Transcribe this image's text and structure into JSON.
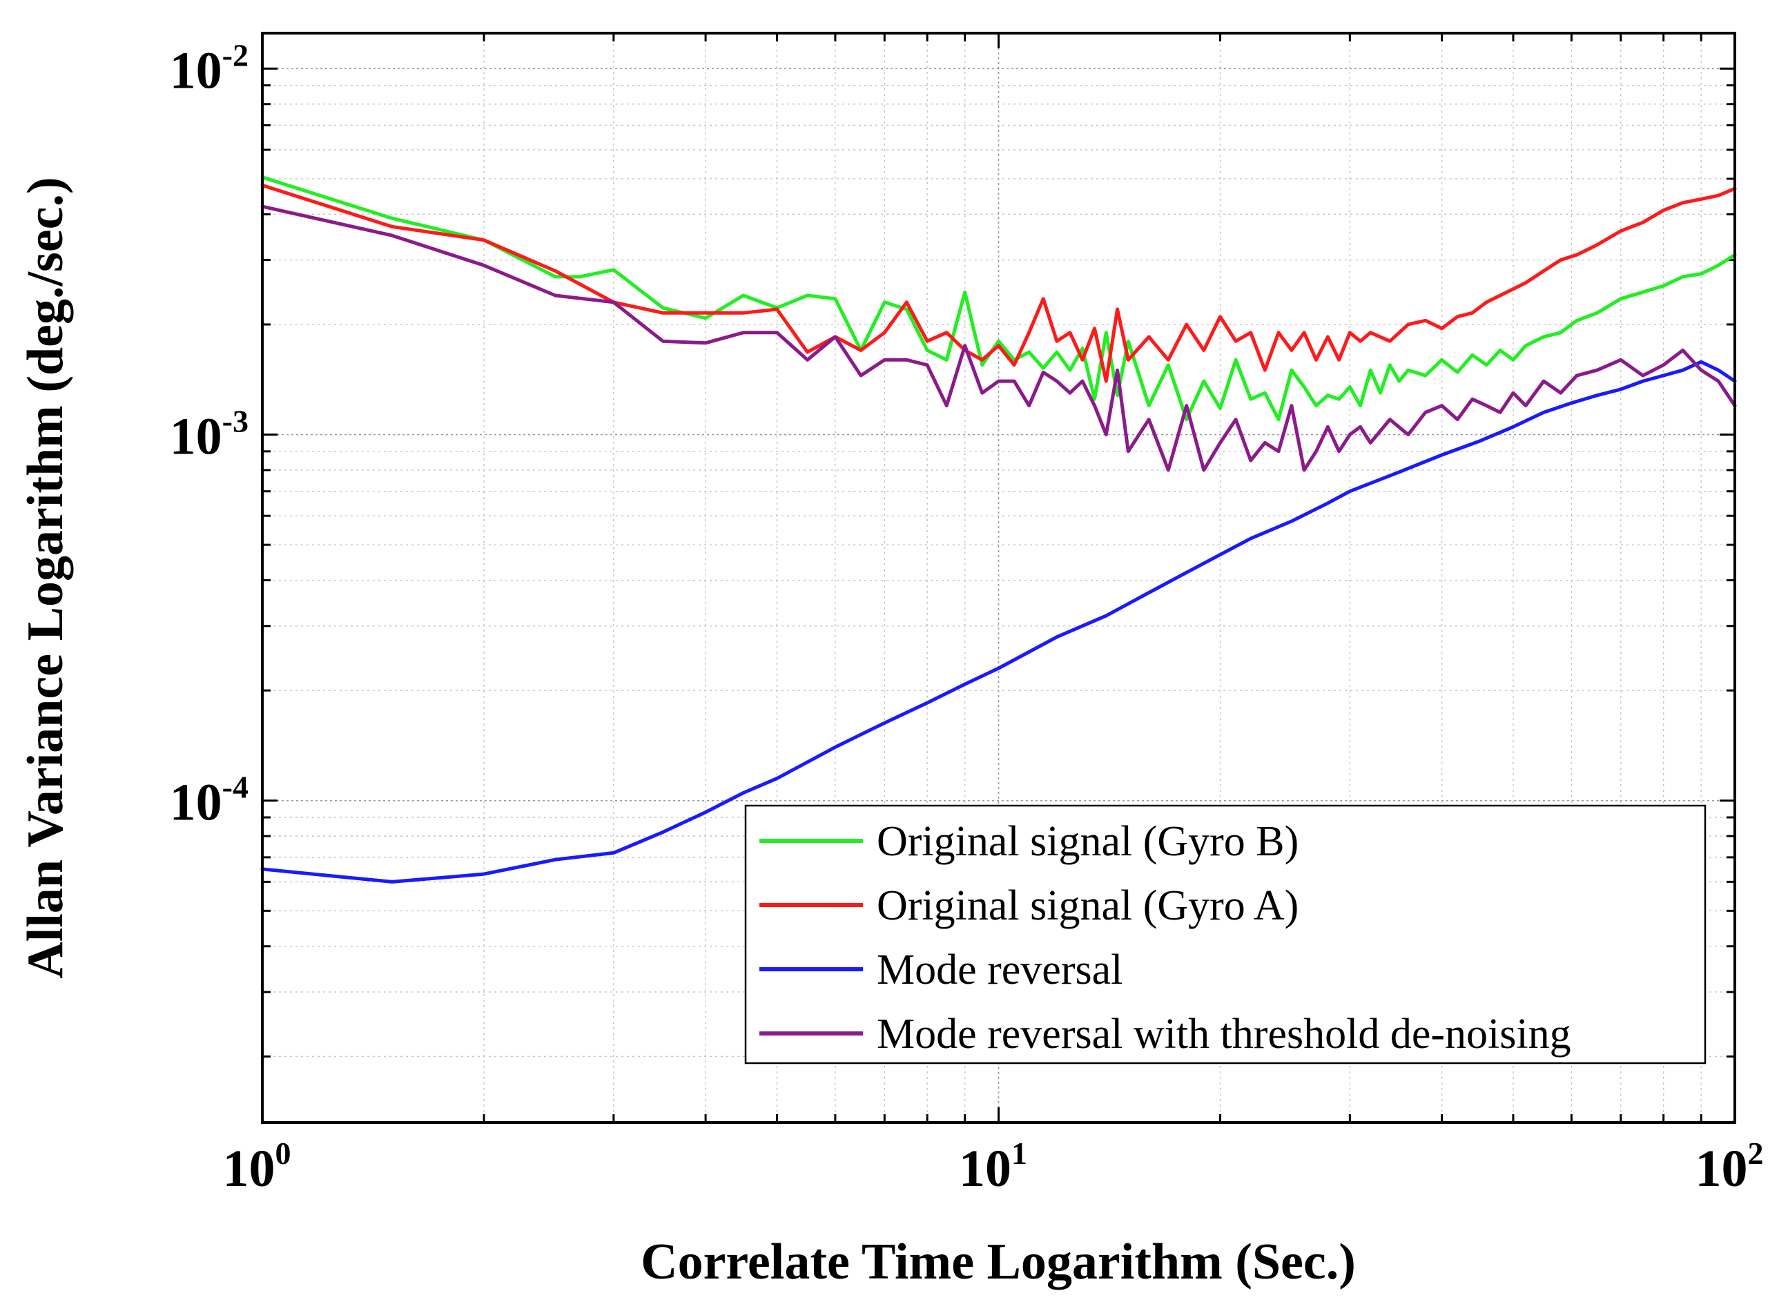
{
  "chart_data": {
    "type": "line",
    "xscale": "log",
    "yscale": "log",
    "xlim": [
      1,
      100
    ],
    "ylim": [
      1.32e-05,
      0.0125
    ],
    "xlabel": "Correlate Time Logarithm (Sec.)",
    "ylabel": "Allan Variance Logarithm (deg./sec.)",
    "x_ticks": [
      {
        "base": "10",
        "exp": "0"
      },
      {
        "base": "10",
        "exp": "1"
      },
      {
        "base": "10",
        "exp": "2"
      }
    ],
    "y_ticks": [
      {
        "base": "10",
        "exp": "-4"
      },
      {
        "base": "10",
        "exp": "-3"
      },
      {
        "base": "10",
        "exp": "-2"
      }
    ],
    "legend_position": "bottom-right",
    "series": [
      {
        "name": "Original signal (Gyro B)",
        "color": "#22ee22",
        "x": [
          1,
          1.5,
          2,
          2.5,
          2.7,
          3,
          3.5,
          4,
          4.5,
          5,
          5.5,
          6,
          6.5,
          7,
          7.5,
          8,
          8.5,
          9,
          9.5,
          10,
          10.5,
          11,
          11.5,
          12,
          12.5,
          13,
          13.5,
          14,
          14.5,
          15,
          16,
          17,
          18,
          19,
          20,
          21,
          22,
          23,
          24,
          25,
          26,
          27,
          28,
          29,
          30,
          31,
          32,
          33,
          34,
          35,
          36,
          38,
          40,
          42,
          44,
          46,
          48,
          50,
          52,
          55,
          58,
          61,
          65,
          70,
          75,
          80,
          85,
          90,
          95,
          100
        ],
        "y": [
          0.00505,
          0.0039,
          0.0034,
          0.0027,
          0.0027,
          0.00282,
          0.00222,
          0.00208,
          0.0024,
          0.00222,
          0.0024,
          0.00235,
          0.0017,
          0.0023,
          0.0022,
          0.0017,
          0.0016,
          0.00245,
          0.00155,
          0.0018,
          0.0016,
          0.00168,
          0.00152,
          0.00168,
          0.0015,
          0.00172,
          0.00125,
          0.0019,
          0.00128,
          0.0018,
          0.0012,
          0.00155,
          0.0011,
          0.0014,
          0.00118,
          0.0016,
          0.00125,
          0.0013,
          0.0011,
          0.0015,
          0.00135,
          0.0012,
          0.00128,
          0.00125,
          0.00135,
          0.0012,
          0.0015,
          0.0013,
          0.00155,
          0.0014,
          0.0015,
          0.00145,
          0.0016,
          0.00148,
          0.00165,
          0.00155,
          0.0017,
          0.0016,
          0.00175,
          0.00185,
          0.0019,
          0.00205,
          0.00215,
          0.00235,
          0.00245,
          0.00255,
          0.0027,
          0.00275,
          0.0029,
          0.0031
        ]
      },
      {
        "name": "Original signal (Gyro A)",
        "color": "#ff1a1a",
        "x": [
          1,
          1.5,
          2,
          2.5,
          3,
          3.5,
          4,
          4.5,
          5,
          5.5,
          6,
          6.5,
          7,
          7.5,
          8,
          8.5,
          9,
          9.5,
          10,
          10.5,
          11,
          11.5,
          12,
          12.5,
          13,
          13.5,
          14,
          14.5,
          15,
          16,
          17,
          18,
          19,
          20,
          21,
          22,
          23,
          24,
          25,
          26,
          27,
          28,
          29,
          30,
          31,
          32,
          34,
          36,
          38,
          40,
          42,
          44,
          46,
          48,
          50,
          52,
          55,
          58,
          61,
          65,
          70,
          75,
          80,
          85,
          90,
          95,
          100
        ],
        "y": [
          0.0048,
          0.0037,
          0.0034,
          0.0028,
          0.0023,
          0.00215,
          0.00215,
          0.00215,
          0.0022,
          0.00168,
          0.00185,
          0.0017,
          0.0019,
          0.0023,
          0.0018,
          0.0019,
          0.0017,
          0.0016,
          0.00175,
          0.00155,
          0.0019,
          0.00235,
          0.0018,
          0.0019,
          0.0016,
          0.00195,
          0.0014,
          0.0022,
          0.0016,
          0.00185,
          0.0016,
          0.002,
          0.0017,
          0.0021,
          0.0018,
          0.0019,
          0.0015,
          0.0019,
          0.0017,
          0.0019,
          0.0016,
          0.00185,
          0.0016,
          0.0019,
          0.0018,
          0.0019,
          0.0018,
          0.002,
          0.00205,
          0.00195,
          0.0021,
          0.00215,
          0.0023,
          0.0024,
          0.0025,
          0.0026,
          0.0028,
          0.003,
          0.0031,
          0.0033,
          0.0036,
          0.0038,
          0.0041,
          0.0043,
          0.0044,
          0.0045,
          0.0047
        ]
      },
      {
        "name": "Mode reversal",
        "color": "#1a1aff",
        "x": [
          1,
          1.5,
          2,
          2.5,
          3,
          3.5,
          4,
          4.5,
          5,
          6,
          7,
          8,
          9,
          10,
          12,
          14,
          16,
          18,
          20,
          22,
          25,
          28,
          30,
          35,
          40,
          45,
          50,
          55,
          60,
          65,
          70,
          75,
          80,
          85,
          90,
          95,
          100
        ],
        "y": [
          6.5e-05,
          6e-05,
          6.3e-05,
          6.9e-05,
          7.2e-05,
          8.2e-05,
          9.3e-05,
          0.000105,
          0.000115,
          0.00014,
          0.000163,
          0.000185,
          0.000208,
          0.00023,
          0.00028,
          0.00032,
          0.00037,
          0.00042,
          0.00047,
          0.00052,
          0.00058,
          0.00065,
          0.0007,
          0.00079,
          0.00088,
          0.00096,
          0.00105,
          0.00115,
          0.00122,
          0.00128,
          0.00133,
          0.0014,
          0.00145,
          0.0015,
          0.00158,
          0.0015,
          0.0014
        ]
      },
      {
        "name": "Mode reversal with threshold de-noising",
        "color": "#8b1a8b",
        "x": [
          1,
          1.5,
          2,
          2.5,
          3,
          3.5,
          4,
          4.5,
          5,
          5.5,
          6,
          6.5,
          7,
          7.5,
          8,
          8.5,
          9,
          9.5,
          10,
          10.5,
          11,
          11.5,
          12,
          12.5,
          13,
          13.5,
          14,
          14.5,
          15,
          16,
          17,
          18,
          19,
          20,
          21,
          22,
          23,
          24,
          25,
          26,
          27,
          28,
          29,
          30,
          31,
          32,
          34,
          36,
          38,
          40,
          42,
          44,
          46,
          48,
          50,
          52,
          55,
          58,
          61,
          65,
          70,
          75,
          80,
          85,
          90,
          95,
          100
        ],
        "y": [
          0.0042,
          0.0035,
          0.0029,
          0.0024,
          0.0023,
          0.0018,
          0.00178,
          0.0019,
          0.0019,
          0.0016,
          0.00185,
          0.00145,
          0.0016,
          0.0016,
          0.00155,
          0.0012,
          0.00175,
          0.0013,
          0.0014,
          0.0014,
          0.0012,
          0.00148,
          0.0014,
          0.0013,
          0.0014,
          0.0012,
          0.001,
          0.0015,
          0.0009,
          0.0011,
          0.0008,
          0.0012,
          0.0008,
          0.00095,
          0.0011,
          0.00085,
          0.00095,
          0.0009,
          0.0012,
          0.0008,
          0.0009,
          0.00105,
          0.0009,
          0.001,
          0.00105,
          0.00095,
          0.0011,
          0.001,
          0.00115,
          0.0012,
          0.0011,
          0.00125,
          0.0012,
          0.00115,
          0.0013,
          0.0012,
          0.0014,
          0.0013,
          0.00145,
          0.0015,
          0.0016,
          0.00145,
          0.00155,
          0.0017,
          0.0015,
          0.0014,
          0.0012
        ]
      }
    ]
  }
}
